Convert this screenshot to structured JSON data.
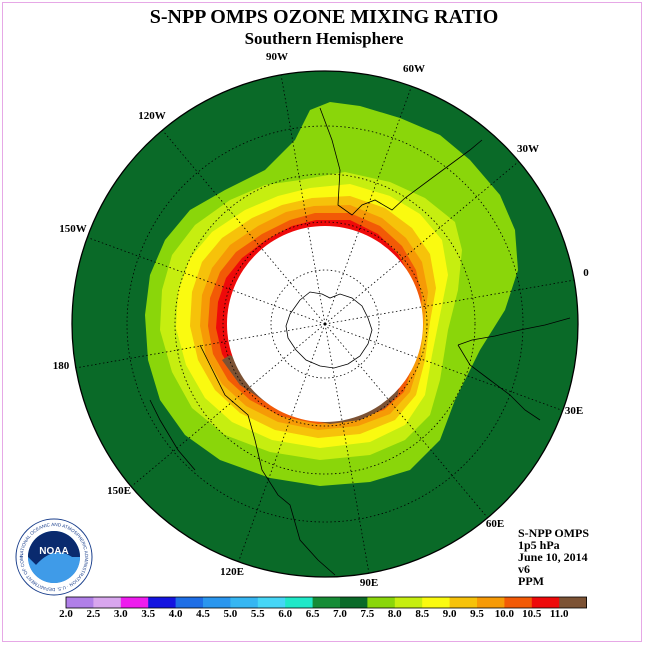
{
  "title": "S-NPP OMPS OZONE MIXING RATIO",
  "subtitle": "Southern Hemisphere",
  "longitude_labels": [
    "90W",
    "60W",
    "30W",
    "0",
    "30E",
    "60E",
    "90E",
    "120E",
    "150E",
    "180",
    "150W",
    "120W"
  ],
  "info": {
    "instrument": "S-NPP OMPS",
    "level": "1p5 hPa",
    "date": "June 10, 2014",
    "version": "v6",
    "units": "PPM"
  },
  "colorbar": {
    "ticks": [
      "2.0",
      "2.5",
      "3.0",
      "3.5",
      "4.0",
      "4.5",
      "5.0",
      "5.5",
      "6.0",
      "6.5",
      "7.0",
      "7.5",
      "8.0",
      "8.5",
      "9.0",
      "9.5",
      "10.0",
      "10.5",
      "11.0"
    ],
    "colors": [
      "#b07fe8",
      "#d8a6ee",
      "#ee1cee",
      "#1414e0",
      "#1e6ee6",
      "#2a96ee",
      "#36b6f2",
      "#46d6f6",
      "#20e8c8",
      "#168c36",
      "#0a6a28",
      "#8ad60a",
      "#c6ee10",
      "#fafa10",
      "#f6c20a",
      "#f69a06",
      "#f25a06",
      "#ee0a0a",
      "#7c5234"
    ]
  },
  "colors": {
    "background": "#0a6a28",
    "no_data": "#ffffff"
  },
  "logo": {
    "text": "NOAA",
    "ring_text": "NATIONAL OCEANIC AND ATMOSPHERIC ADMINISTRATION · U.S. DEPARTMENT OF COMMERCE"
  }
}
